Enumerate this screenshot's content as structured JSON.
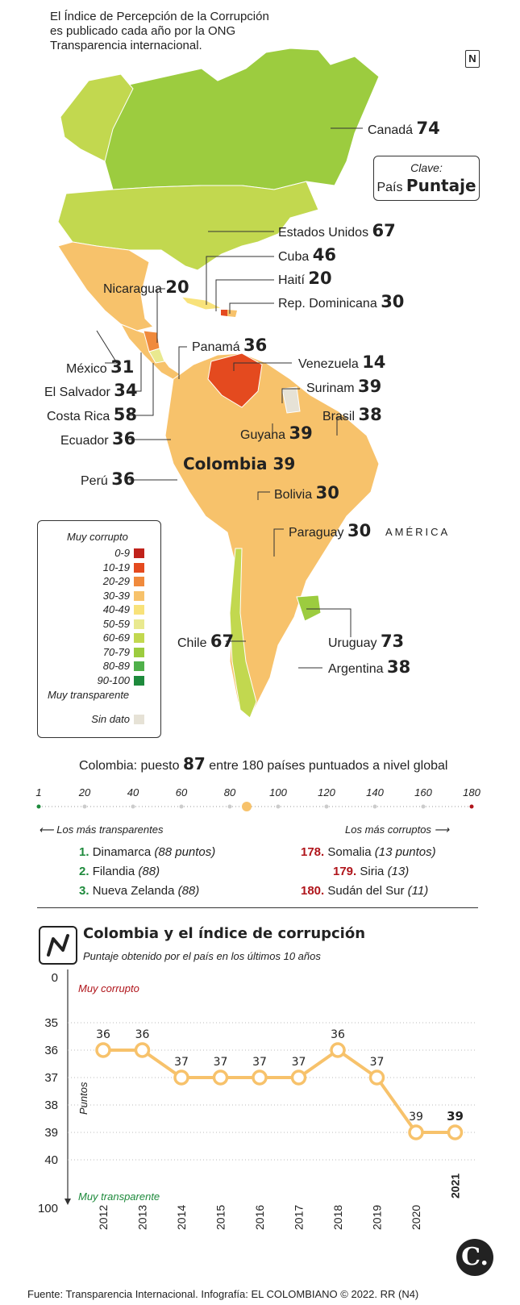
{
  "intro": [
    "El Índice de Percepción de la Corrupción",
    "es publicado cada año por la ONG",
    "Transparencia internacional."
  ],
  "north": "N",
  "key": {
    "title": "Clave:",
    "country": "País",
    "score": "Puntaje"
  },
  "region_label": "AMÉRICA",
  "countries": [
    {
      "name": "Canadá",
      "score": "74"
    },
    {
      "name": "Estados Unidos",
      "score": "67"
    },
    {
      "name": "Cuba",
      "score": "46"
    },
    {
      "name": "Haití",
      "score": "20"
    },
    {
      "name": "Rep. Dominicana",
      "score": "30"
    },
    {
      "name": "Nicaragua",
      "score": "20"
    },
    {
      "name": "Panamá",
      "score": "36"
    },
    {
      "name": "Venezuela",
      "score": "14"
    },
    {
      "name": "México",
      "score": "31"
    },
    {
      "name": "El Salvador",
      "score": "34"
    },
    {
      "name": "Surinam",
      "score": "39"
    },
    {
      "name": "Costa Rica",
      "score": "58"
    },
    {
      "name": "Brasil",
      "score": "38"
    },
    {
      "name": "Guyana",
      "score": "39"
    },
    {
      "name": "Ecuador",
      "score": "36"
    },
    {
      "name": "Colombia",
      "score": "39"
    },
    {
      "name": "Perú",
      "score": "36"
    },
    {
      "name": "Bolivia",
      "score": "30"
    },
    {
      "name": "Paraguay",
      "score": "30"
    },
    {
      "name": "Chile",
      "score": "67"
    },
    {
      "name": "Uruguay",
      "score": "73"
    },
    {
      "name": "Argentina",
      "score": "38"
    }
  ],
  "legend": {
    "top": "Muy corrupto",
    "bottom": "Muy transparente",
    "nodata": "Sin dato",
    "nodata_color": "#e6e2d6",
    "ranges": [
      {
        "label": "0-9",
        "color": "#c0221b"
      },
      {
        "label": "10-19",
        "color": "#e44a1f"
      },
      {
        "label": "20-29",
        "color": "#f08a3c"
      },
      {
        "label": "30-39",
        "color": "#f7c26b"
      },
      {
        "label": "40-49",
        "color": "#f8e27a"
      },
      {
        "label": "50-59",
        "color": "#e9e98f"
      },
      {
        "label": "60-69",
        "color": "#c2d84f"
      },
      {
        "label": "70-79",
        "color": "#9ccc3f"
      },
      {
        "label": "80-89",
        "color": "#4fb04a"
      },
      {
        "label": "90-100",
        "color": "#1e8a3c"
      }
    ]
  },
  "ranking": {
    "prefix": "Colombia: puesto",
    "position": "87",
    "suffix": "entre 180 países puntuados a nivel global",
    "position_value": 87,
    "ticks": [
      "1",
      "20",
      "40",
      "60",
      "80",
      "100",
      "120",
      "140",
      "160",
      "180"
    ],
    "tick_values": [
      1,
      20,
      40,
      60,
      80,
      100,
      120,
      140,
      160,
      180
    ],
    "left_dir": "Los más transparentes",
    "right_dir": "Los más corruptos",
    "best": [
      {
        "rank": "1.",
        "name": "Dinamarca",
        "pts": "(88 puntos)"
      },
      {
        "rank": "2.",
        "name": "Filandia",
        "pts": "(88)"
      },
      {
        "rank": "3.",
        "name": "Nueva Zelanda",
        "pts": "(88)"
      }
    ],
    "worst": [
      {
        "rank": "178.",
        "name": "Somalia",
        "pts": "(13 puntos)"
      },
      {
        "rank": "179.",
        "name": "Siria",
        "pts": "(13)"
      },
      {
        "rank": "180.",
        "name": "Sudán del Sur",
        "pts": "(11)"
      }
    ],
    "colors": {
      "best": "#1e8a3c",
      "worst": "#b0151b",
      "marker": "#f7c26b"
    }
  },
  "section": {
    "title": "Colombia y el índice de corrupción",
    "subtitle": "Puntaje obtenido por el país en los últimos 10 años"
  },
  "chart_data": {
    "type": "line",
    "x": [
      "2012",
      "2013",
      "2014",
      "2015",
      "2016",
      "2017",
      "2018",
      "2019",
      "2020",
      "2021"
    ],
    "values": [
      36,
      36,
      37,
      37,
      37,
      37,
      36,
      37,
      39,
      39
    ],
    "point_labels": [
      "36",
      "36",
      "37",
      "37",
      "37",
      "37",
      "36",
      "37",
      "39",
      "39"
    ],
    "ylabel": "Puntos",
    "y_ticks": [
      "0",
      "35",
      "36",
      "37",
      "38",
      "39",
      "40",
      "100"
    ],
    "y_tick_values": [
      0,
      35,
      36,
      37,
      38,
      39,
      40,
      100
    ],
    "y_axis_inverted": true,
    "top_annotation": "Muy corrupto",
    "bottom_annotation": "Muy transparente",
    "line_color": "#f7c26b",
    "top_color": "#b0151b",
    "bottom_color": "#1e8a3c"
  },
  "footer": "Fuente: Transparencia Internacional. Infografía: EL COLOMBIANO © 2022. RR (N4)",
  "logo": "C."
}
